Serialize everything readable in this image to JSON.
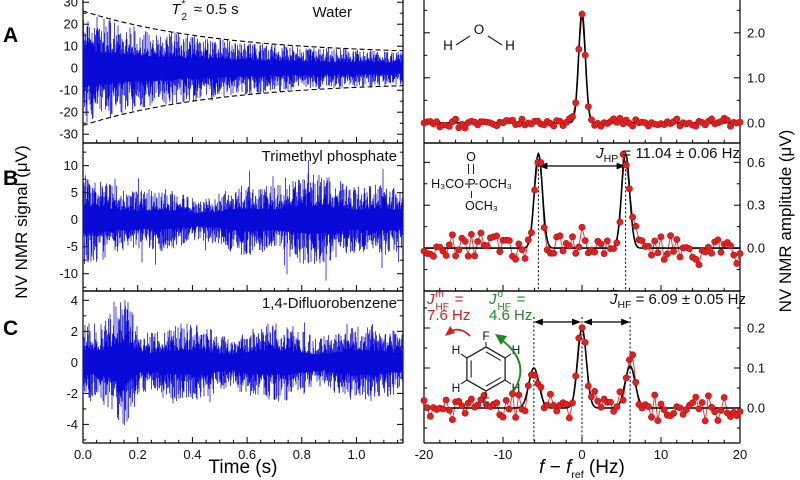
{
  "panel_labels": [
    "A",
    "B",
    "C"
  ],
  "axes": {
    "left_y_title": "NV NMR signal (μV)",
    "right_y_title": "NV NMR amplitude (μV)",
    "left_x_title": "Time (s)",
    "right_x_title_parts": {
      "f1": "f",
      "op": " − ",
      "f2": "f",
      "sub": "ref",
      "unit": " (Hz)"
    }
  },
  "annotations": {
    "t2": {
      "sym": "T",
      "sup": "*",
      "sub": "2",
      "rest": " ≈ 0.5 s"
    },
    "jhp": {
      "sym": "J",
      "sub": "HP",
      "rest": " = 11.04 ± 0.06 Hz"
    },
    "jhf_mean": {
      "sym": "J",
      "sub": "HF",
      "rest": " = 6.09 ± 0.05 Hz"
    },
    "jhf_meta": {
      "sym": "J",
      "sup": "m",
      "sub": "HF",
      "eq": " =",
      "value": "7.6 Hz"
    },
    "jhf_ortho": {
      "sym": "J",
      "sup": "o",
      "sub": "HF",
      "eq": " =",
      "value": "4.6 Hz"
    }
  },
  "molecules": {
    "water": {
      "O": "O",
      "H_left": "H",
      "H_right": "H"
    },
    "trimethyl_phosphate": {
      "top": "O",
      "left": "H₃CO",
      "center": "P",
      "right": "OCH₃",
      "bottom": "OCH₃"
    },
    "difluorobenzene": {
      "F_top": "F",
      "F_bottom": "F",
      "H": "H"
    }
  },
  "colors": {
    "signal_blue": "#0a0ad8",
    "data_red": "#e32020",
    "data_red_dark": "#b01212",
    "fit_black": "#000000",
    "meta_red": "#cc2222",
    "ortho_green": "#1e8c1e"
  },
  "chart_data": [
    {
      "id": "water-time-domain",
      "type": "line",
      "panel": "A",
      "position": "left",
      "title": "Water",
      "xlabel": "Time (s)",
      "ylabel": "NV NMR signal (μV)",
      "x_range": [
        0,
        1.17
      ],
      "y_range": [
        -34,
        31
      ],
      "x_ticks": [
        0,
        0.2,
        0.4,
        0.6,
        0.8,
        1.0
      ],
      "x_tick_labels": [
        "0.0",
        "0.2",
        "0.4",
        "0.6",
        "0.8",
        "1.0"
      ],
      "x_minor_step": 0.05,
      "y_ticks": [
        30,
        20,
        10,
        0,
        -10,
        -20,
        -30
      ],
      "y_tick_labels": [
        "30",
        "20",
        "10",
        "0",
        "-10",
        "-20",
        "-30"
      ],
      "y_minor_step": 5,
      "annotation": "T2* ≈ 0.5 s",
      "signal": {
        "kind": "decaying_noise",
        "envelope_uV": {
          "start": 26,
          "tau_s": 0.5,
          "offset": 6
        },
        "seed": 11,
        "spike_chance": 0.02,
        "spike_gain": 1.1
      },
      "envelope_dashed": true,
      "grid": false
    },
    {
      "id": "tmp-time-domain",
      "type": "line",
      "panel": "B",
      "position": "left",
      "title": "Trimethyl phosphate",
      "xlabel": "Time (s)",
      "ylabel": "NV NMR signal (μV)",
      "x_range": [
        0,
        1.17
      ],
      "y_range": [
        -13.2,
        14.2
      ],
      "x_ticks": [
        0,
        0.2,
        0.4,
        0.6,
        0.8,
        1.0
      ],
      "x_tick_labels": [
        "0.0",
        "0.2",
        "0.4",
        "0.6",
        "0.8",
        "1.0"
      ],
      "x_minor_step": 0.05,
      "y_ticks": [
        10,
        5,
        0,
        -5,
        -10
      ],
      "y_tick_labels": [
        "10",
        "5",
        "0",
        "-5",
        "-10"
      ],
      "y_minor_step": 2.5,
      "signal": {
        "kind": "steady_noise",
        "base_uV": 7.8,
        "seed": 23,
        "spike_chance": 0.03,
        "spike_gain": 1.55
      },
      "envelope_dashed": false,
      "grid": false
    },
    {
      "id": "dfb-time-domain",
      "type": "line",
      "panel": "C",
      "position": "left",
      "title": "1,4-Difluorobenzene",
      "xlabel": "Time (s)",
      "ylabel": "NV NMR signal (μV)",
      "x_range": [
        0,
        1.17
      ],
      "y_range": [
        -5.2,
        4.6
      ],
      "x_ticks": [
        0,
        0.2,
        0.4,
        0.6,
        0.8,
        1.0
      ],
      "x_tick_labels": [
        "0.0",
        "0.2",
        "0.4",
        "0.6",
        "0.8",
        "1.0"
      ],
      "x_minor_step": 0.05,
      "y_ticks": [
        4,
        2,
        0,
        -2,
        -4
      ],
      "y_tick_labels": [
        "4",
        "2",
        "0",
        "-2",
        "-4"
      ],
      "y_minor_step": 1,
      "signal": {
        "kind": "beating_noise",
        "base_uV": 1.55,
        "beat_uV": 1.0,
        "beat_period_s": 0.33,
        "beat_phase": 1.2,
        "bump": {
          "t_s": 0.15,
          "amp_uV": 2.2,
          "width_s": 0.05
        },
        "seed": 37,
        "spike_chance": 0.02,
        "spike_gain": 1.3
      },
      "envelope_dashed": false,
      "grid": false
    },
    {
      "id": "water-spectrum",
      "type": "scatter",
      "panel": "A",
      "position": "right",
      "molecule": "H2O",
      "xlabel": "f - f_ref (Hz)",
      "ylabel": "NV NMR amplitude (μV)",
      "x_range": [
        -20,
        20
      ],
      "x_ticks": [
        -20,
        -10,
        0,
        10,
        20
      ],
      "x_tick_labels": [
        "-20",
        "-10",
        "0",
        "10",
        "20"
      ],
      "x_minor_step": 2,
      "y_range": [
        -0.45,
        2.73
      ],
      "y_ticks": [
        2.0,
        1.0,
        0.0
      ],
      "y_tick_labels": [
        "2.0",
        "1.0",
        "0.0"
      ],
      "y_minor_step": 0.5,
      "peaks": [
        {
          "center_hz": 0,
          "amplitude_uV": 2.45,
          "hwhm_hz": 0.5
        }
      ],
      "point_step_hz": 0.4,
      "noise_sd_uV": 0.05,
      "seed": 101
    },
    {
      "id": "tmp-spectrum",
      "type": "scatter",
      "panel": "B",
      "position": "right",
      "molecule": "trimethyl phosphate",
      "xlabel": "f - f_ref (Hz)",
      "ylabel": "NV NMR amplitude (μV)",
      "x_range": [
        -20,
        20
      ],
      "x_ticks": [
        -20,
        -10,
        0,
        10,
        20
      ],
      "x_tick_labels": [
        "-20",
        "-10",
        "0",
        "10",
        "20"
      ],
      "x_minor_step": 2,
      "y_range": [
        -0.3,
        0.735
      ],
      "y_ticks": [
        0.6,
        0.3,
        0.0
      ],
      "y_tick_labels": [
        "0.6",
        "0.3",
        "0.0"
      ],
      "y_minor_step": 0.15,
      "peaks": [
        {
          "center_hz": -5.52,
          "amplitude_uV": 0.66,
          "hwhm_hz": 0.6
        },
        {
          "center_hz": 5.52,
          "amplitude_uV": 0.66,
          "hwhm_hz": 0.6
        }
      ],
      "coupling": {
        "name": "J_HP",
        "value_hz": 11.04,
        "error_hz": 0.06
      },
      "dotted_lines_hz": [
        -5.52,
        5.52
      ],
      "point_step_hz": 0.4,
      "noise_sd_uV": 0.055,
      "seed": 202
    },
    {
      "id": "dfb-spectrum",
      "type": "scatter",
      "panel": "C",
      "position": "right",
      "molecule": "1,4-difluorobenzene",
      "xlabel": "f - f_ref (Hz)",
      "ylabel": "NV NMR amplitude (μV)",
      "x_range": [
        -20,
        20
      ],
      "x_ticks": [
        -20,
        -10,
        0,
        10,
        20
      ],
      "x_tick_labels": [
        "-20",
        "-10",
        "0",
        "10",
        "20"
      ],
      "x_minor_step": 2,
      "y_range": [
        -0.0875,
        0.2925
      ],
      "y_ticks": [
        0.2,
        0.1,
        0.0
      ],
      "y_tick_labels": [
        "0.2",
        "0.1",
        "0.0"
      ],
      "y_minor_step": 0.05,
      "peaks": [
        {
          "center_hz": -6.09,
          "amplitude_uV": 0.1,
          "hwhm_hz": 0.75
        },
        {
          "center_hz": 0,
          "amplitude_uV": 0.2,
          "hwhm_hz": 0.65
        },
        {
          "center_hz": 6.09,
          "amplitude_uV": 0.105,
          "hwhm_hz": 0.75
        }
      ],
      "coupling": {
        "name": "J_HF_mean",
        "value_hz": 6.09,
        "error_hz": 0.05,
        "meta_hz": 7.6,
        "ortho_hz": 4.6
      },
      "dotted_lines_hz": [
        -6.09,
        0,
        6.09
      ],
      "point_step_hz": 0.4,
      "noise_sd_uV": 0.016,
      "seed": 303
    }
  ]
}
